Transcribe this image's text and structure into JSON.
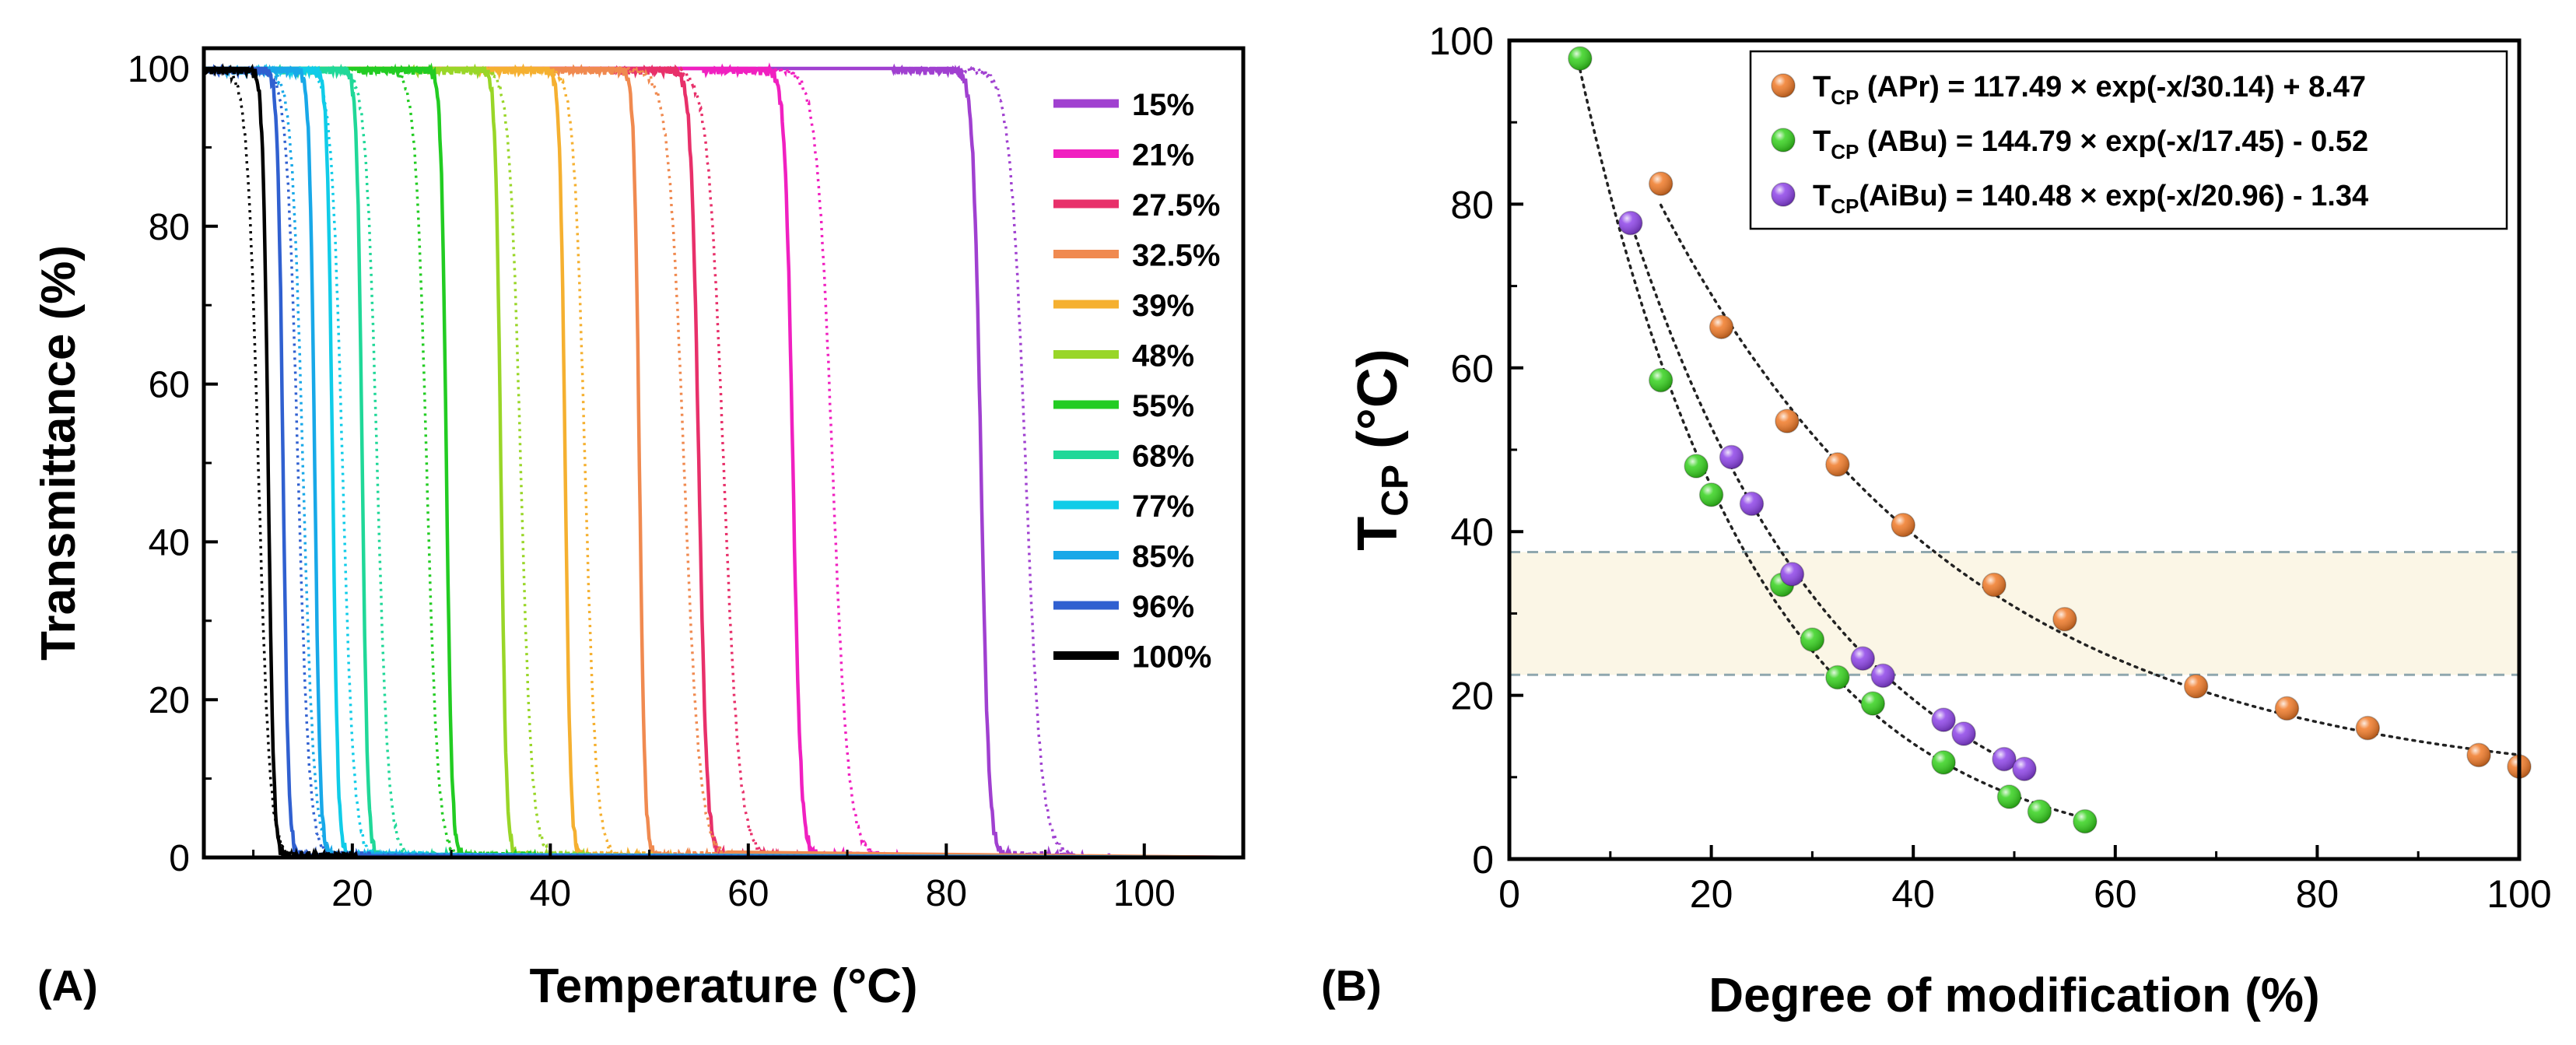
{
  "chart_data": [
    {
      "panel": "(A)",
      "type": "line",
      "xlabel": "Temperature (°C)",
      "ylabel": "Transmittance (%)",
      "xlim": [
        5,
        110
      ],
      "ylim": [
        0,
        100
      ],
      "xticks": [
        20,
        40,
        60,
        80,
        100
      ],
      "yticks": [
        0,
        20,
        40,
        60,
        80,
        100
      ],
      "legend_position": "right",
      "grid": false,
      "series": [
        {
          "name": "15%",
          "color": "#A040D0",
          "t_solid": 83.5,
          "t_dotted": 88.0
        },
        {
          "name": "21%",
          "color": "#F020C0",
          "t_solid": 64.5,
          "t_dotted": 68.5
        },
        {
          "name": "27.5%",
          "color": "#E8306A",
          "t_solid": 55.0,
          "t_dotted": 57.5
        },
        {
          "name": "32.5%",
          "color": "#F08A50",
          "t_solid": 49.0,
          "t_dotted": 53.5
        },
        {
          "name": "39%",
          "color": "#F5B030",
          "t_solid": 41.5,
          "t_dotted": 43.5
        },
        {
          "name": "48%",
          "color": "#99D628",
          "t_solid": 35.0,
          "t_dotted": 37.0
        },
        {
          "name": "55%",
          "color": "#22CC22",
          "t_solid": 29.5,
          "t_dotted": 27.5
        },
        {
          "name": "68%",
          "color": "#20D898",
          "t_solid": 21.0,
          "t_dotted": 22.5
        },
        {
          "name": "77%",
          "color": "#10CCE8",
          "t_solid": 18.0,
          "t_dotted": 19.0
        },
        {
          "name": "85%",
          "color": "#18A8E8",
          "t_solid": 16.2,
          "t_dotted": 15.0
        },
        {
          "name": "96%",
          "color": "#3060D0",
          "t_solid": 13.0,
          "t_dotted": 14.5
        },
        {
          "name": "100%",
          "color": "#000000",
          "t_solid": 11.5,
          "t_dotted": 10.5
        }
      ]
    },
    {
      "panel": "(B)",
      "type": "scatter",
      "xlabel": "Degree of modification (%)",
      "ylabel_main": "T",
      "ylabel_sub": "CP",
      "ylabel_rest": " (°C)",
      "xlim": [
        0,
        100
      ],
      "ylim": [
        0,
        100
      ],
      "xticks": [
        0,
        20,
        40,
        60,
        80,
        100
      ],
      "yticks": [
        0,
        20,
        40,
        60,
        80,
        100
      ],
      "legend_position": "top-right",
      "grid": false,
      "band": {
        "y_low": 22.5,
        "y_high": 37.5,
        "fill": "#FBF6E6",
        "stroke": "#8FA7AE"
      },
      "series": [
        {
          "name": "APr",
          "legend_main": "T",
          "legend_sub": "CP",
          "legend_rest": " (APr) = 117.49 × exp(-x/30.14) + 8.47",
          "color": "#F07A28",
          "fit": {
            "a": 117.49,
            "tau": 30.14,
            "c": 8.47,
            "xmin": 15,
            "xmax": 100
          },
          "x": [
            15,
            21,
            27.5,
            32.5,
            39,
            48,
            55,
            68,
            77,
            85,
            96,
            100
          ],
          "y": [
            82.5,
            65,
            53.5,
            48.2,
            40.8,
            33.5,
            29.3,
            21.1,
            18.4,
            16.0,
            12.7,
            11.3
          ]
        },
        {
          "name": "ABu",
          "legend_main": "T",
          "legend_sub": "CP",
          "legend_rest": " (ABu) = 144.79 × exp(-x/17.45) - 0.52",
          "color": "#36D21E",
          "fit": {
            "a": 144.79,
            "tau": 17.45,
            "c": -0.52,
            "xmin": 7,
            "xmax": 57
          },
          "x": [
            7,
            15,
            18.5,
            20,
            27,
            30,
            32.5,
            36,
            43,
            49.5,
            52.5,
            57
          ],
          "y": [
            97.8,
            58.5,
            48,
            44.5,
            33.5,
            26.8,
            22.2,
            19,
            11.8,
            7.6,
            5.8,
            4.6
          ]
        },
        {
          "name": "AiBu",
          "legend_main": "T",
          "legend_sub": "CP",
          "legend_rest": "(AiBu) = 140.48 × exp(-x/20.96) - 1.34",
          "color": "#8E44E8",
          "fit": {
            "a": 140.48,
            "tau": 20.96,
            "c": -1.34,
            "xmin": 12,
            "xmax": 51
          },
          "x": [
            12,
            22,
            24,
            28,
            35,
            37,
            43,
            45,
            49,
            51
          ],
          "y": [
            77.7,
            49.1,
            43.4,
            34.8,
            24.5,
            22.4,
            17,
            15.3,
            12.2,
            11
          ]
        }
      ]
    }
  ]
}
